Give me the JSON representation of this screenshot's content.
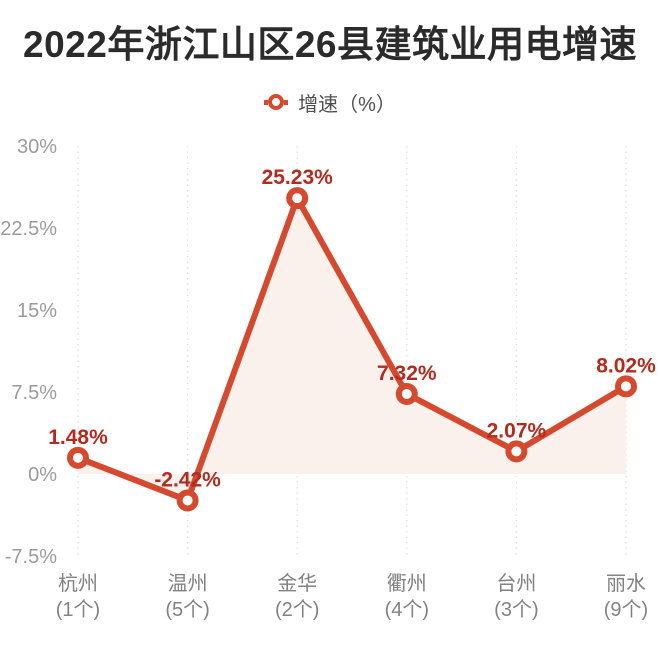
{
  "title": "2022年浙江山区26县建筑业用电增速",
  "legend": {
    "label": "增速（%）"
  },
  "colors": {
    "background": "#ffffff",
    "title_text": "#2b2b2b",
    "line": "#d5492e",
    "marker_fill": "#ffffff",
    "area_fill": "#faf0ec",
    "data_label": "#b42a1e",
    "y_axis_label": "#9b9b9b",
    "x_axis_label": "#828282",
    "gridline": "#e0e0e0",
    "legend_text": "#4f4f4f"
  },
  "chart_data": {
    "type": "line",
    "title": "2022年浙江山区26县建筑业用电增速",
    "series_name": "增速（%）",
    "categories": [
      "杭州",
      "温州",
      "金华",
      "衢州",
      "台州",
      "丽水"
    ],
    "category_counts": [
      "(1个)",
      "(5个)",
      "(2个)",
      "(4个)",
      "(3个)",
      "(9个)"
    ],
    "values": [
      1.48,
      -2.42,
      25.23,
      7.32,
      2.07,
      8.02
    ],
    "data_labels": [
      "1.48%",
      "-2.42%",
      "25.23%",
      "7.32%",
      "2.07%",
      "8.02%"
    ],
    "y_ticks": [
      {
        "label": "30%",
        "value": 30
      },
      {
        "label": "22.5%",
        "value": 22.5
      },
      {
        "label": "15%",
        "value": 15
      },
      {
        "label": "7.5%",
        "value": 7.5
      },
      {
        "label": "0%",
        "value": 0
      },
      {
        "label": "-7.5%",
        "value": -7.5
      }
    ],
    "ylim": [
      -7.5,
      30
    ],
    "grid": "vertical-dotted-per-category",
    "horizontal_gridlines": false,
    "legend_position": "top-center",
    "area": true,
    "area_baseline": 0,
    "marker": "hollow-circle",
    "label_position": "above-point"
  }
}
